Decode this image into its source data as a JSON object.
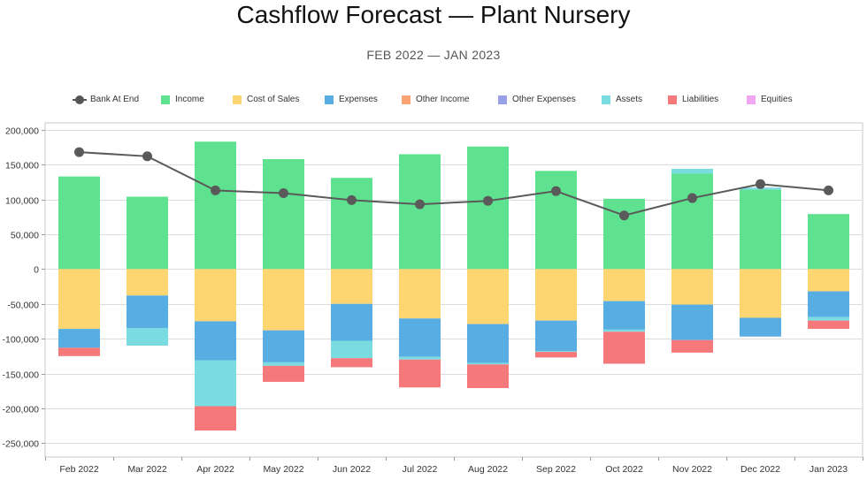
{
  "chart_data": {
    "type": "bar",
    "title": "Cashflow Forecast — Plant Nursery",
    "subtitle": "FEB 2022 — JAN 2023",
    "xlabel": "",
    "ylabel": "",
    "ylim": [
      -270000,
      210000
    ],
    "yticks": [
      200000,
      150000,
      100000,
      50000,
      0,
      -50000,
      -100000,
      -150000,
      -200000,
      -250000
    ],
    "ytick_labels": [
      "200,000",
      "150,000",
      "100,000",
      "50,000",
      "0",
      "-50,000",
      "-100,000",
      "-150,000",
      "-200,000",
      "-250,000"
    ],
    "grid": true,
    "legend_position": "top",
    "categories": [
      "Feb 2022",
      "Mar 2022",
      "Apr 2022",
      "May 2022",
      "Jun 2022",
      "Jul 2022",
      "Aug 2022",
      "Sep 2022",
      "Oct 2022",
      "Nov 2022",
      "Dec 2022",
      "Jan 2023"
    ],
    "series": [
      {
        "name": "Bank At End",
        "type": "line",
        "color": "#5a5a5a",
        "values": [
          168000,
          162000,
          113000,
          109000,
          99000,
          93000,
          98000,
          112000,
          77000,
          102000,
          122000,
          113000
        ]
      },
      {
        "name": "Income",
        "color": "#5fe28f",
        "values": [
          133000,
          104000,
          183000,
          158000,
          131000,
          165000,
          176000,
          141000,
          101000,
          137000,
          114000,
          79000
        ]
      },
      {
        "name": "Cost of Sales",
        "color": "#fed671",
        "values": [
          -86000,
          -38000,
          -75000,
          -88000,
          -50000,
          -71000,
          -79000,
          -74000,
          -46000,
          -51000,
          -70000,
          -32000
        ]
      },
      {
        "name": "Expenses",
        "color": "#58aee2",
        "values": [
          -27000,
          -47000,
          -56000,
          -46000,
          -53000,
          -55000,
          -56000,
          -44000,
          -41000,
          -51000,
          -27000,
          -37000
        ]
      },
      {
        "name": "Other Income",
        "color": "#f9a375",
        "values": [
          0,
          0,
          0,
          0,
          0,
          0,
          0,
          0,
          0,
          0,
          0,
          0
        ]
      },
      {
        "name": "Other Expenses",
        "color": "#9aa0e8",
        "values": [
          0,
          0,
          0,
          0,
          0,
          0,
          0,
          0,
          0,
          0,
          0,
          0
        ]
      },
      {
        "name": "Assets",
        "color": "#7adbe0",
        "values": [
          0,
          -25000,
          -66000,
          -5000,
          -25000,
          -4000,
          -2000,
          -1000,
          -3000,
          7000,
          3000,
          -5000
        ]
      },
      {
        "name": "Liabilities",
        "color": "#f5787b",
        "values": [
          -12000,
          0,
          -35000,
          -23000,
          -13000,
          -40000,
          -34000,
          -8000,
          -46000,
          -18000,
          0,
          -12000
        ]
      },
      {
        "name": "Equities",
        "color": "#f2a6f2",
        "values": [
          0,
          0,
          0,
          0,
          0,
          0,
          0,
          0,
          0,
          0,
          0,
          0
        ]
      }
    ]
  }
}
